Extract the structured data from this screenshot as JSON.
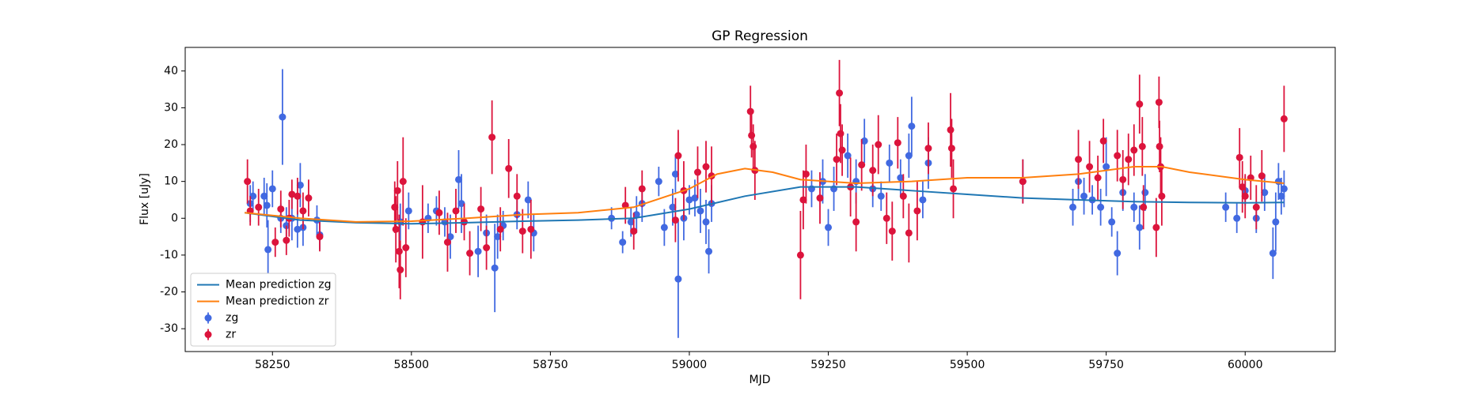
{
  "chart_data": {
    "type": "errorbar",
    "title": "GP Regression",
    "xlabel": "MJD",
    "ylabel": "Flux [uJy]",
    "xlim": [
      58093,
      60162
    ],
    "ylim": [
      -36.2,
      46.4
    ],
    "xticks": [
      58250,
      58500,
      58750,
      59000,
      59250,
      59500,
      59750,
      60000
    ],
    "yticks": [
      -30,
      -20,
      -10,
      0,
      10,
      20,
      30,
      40
    ],
    "legend": "lower left",
    "series": [
      {
        "name": "Mean prediction zg",
        "kind": "line",
        "color": "#1f77b4",
        "x": [
          58200,
          58300,
          58400,
          58500,
          58600,
          58700,
          58800,
          58900,
          59000,
          59100,
          59200,
          59300,
          59400,
          59500,
          59600,
          59700,
          59800,
          59900,
          60000,
          60070
        ],
        "values": [
          1.5,
          -0.5,
          -1.2,
          -1.5,
          -1.2,
          -0.8,
          -0.5,
          0,
          2.5,
          6,
          8.5,
          8.5,
          7.5,
          6.5,
          5.5,
          5,
          4.5,
          4.3,
          4.2,
          4.3
        ]
      },
      {
        "name": "Mean prediction zr",
        "kind": "line",
        "color": "#ff7f0e",
        "x": [
          58200,
          58300,
          58400,
          58500,
          58600,
          58700,
          58800,
          58900,
          59000,
          59050,
          59100,
          59150,
          59200,
          59300,
          59400,
          59500,
          59600,
          59700,
          59800,
          59850,
          59900,
          60000,
          60070
        ],
        "values": [
          1.5,
          0,
          -1,
          -0.8,
          0,
          1,
          1.5,
          3,
          8,
          12,
          13.5,
          12.5,
          10.5,
          9.5,
          10,
          11,
          11,
          12,
          14,
          14,
          12.5,
          10.5,
          9.5
        ]
      },
      {
        "name": "zg",
        "kind": "errorbar",
        "color": "#4169e1",
        "x": [
          58210,
          58215,
          58235,
          58240,
          58242,
          58250,
          58265,
          58268,
          58275,
          58285,
          58295,
          58300,
          58305,
          58330,
          58335,
          58480,
          58495,
          58530,
          58545,
          58560,
          58570,
          58585,
          58590,
          58620,
          58635,
          58650,
          58655,
          58665,
          58690,
          58710,
          58720,
          58860,
          58880,
          58895,
          58905,
          58915,
          58945,
          58955,
          58970,
          58975,
          58980,
          58990,
          59000,
          59010,
          59020,
          59030,
          59035,
          59040,
          59220,
          59240,
          59250,
          59260,
          59285,
          59300,
          59315,
          59330,
          59345,
          59360,
          59380,
          59395,
          59400,
          59420,
          59430,
          59600,
          59690,
          59700,
          59710,
          59725,
          59740,
          59750,
          59760,
          59770,
          59780,
          59800,
          59810,
          59820,
          59965,
          59985,
          60000,
          60020,
          60035,
          60050,
          60055,
          60060,
          60065,
          60070
        ],
        "values": [
          4,
          6,
          6,
          3.5,
          -8.5,
          8,
          0,
          27.5,
          -2,
          0,
          -3,
          9,
          -2.5,
          -0.5,
          -4.5,
          -1,
          2,
          0,
          2,
          -1,
          -5,
          10.5,
          4,
          -9,
          -4,
          -13.5,
          -5,
          -2,
          1,
          5,
          -4,
          0,
          -6.5,
          -1,
          1,
          4,
          10,
          -2.5,
          3,
          12,
          -16.5,
          0,
          5,
          5.5,
          2,
          -1,
          -9,
          4,
          8,
          10,
          -2.5,
          8,
          17,
          10,
          21,
          8,
          6,
          15,
          11,
          17,
          25,
          5,
          15,
          10,
          3,
          10,
          6,
          5,
          3,
          14,
          -1,
          -9.5,
          7,
          3,
          -2.5,
          7,
          3,
          0,
          7.5,
          0,
          7,
          -9.5,
          -1,
          10,
          6,
          8
        ],
        "errors": [
          5,
          4,
          5,
          6,
          8,
          5,
          4,
          13,
          5,
          6,
          5,
          6,
          5,
          4,
          4,
          5,
          5,
          4,
          4,
          4,
          6,
          8,
          8,
          7,
          5,
          12,
          6,
          4,
          4,
          5,
          5,
          3,
          3,
          4,
          5,
          5,
          4,
          5,
          5,
          5,
          16,
          6,
          4,
          5,
          6,
          6,
          6,
          5,
          5,
          6,
          5,
          6,
          6,
          6,
          6,
          5,
          4,
          5,
          5,
          6,
          8,
          5,
          7,
          6,
          5,
          5,
          5,
          4,
          5,
          8,
          4,
          6,
          5,
          4,
          6,
          5,
          4,
          4,
          4,
          4,
          5,
          7,
          8,
          5,
          5,
          5
        ]
      },
      {
        "name": "zr",
        "kind": "errorbar",
        "color": "#dc143c",
        "x": [
          58205,
          58210,
          58225,
          58255,
          58265,
          58275,
          58280,
          58285,
          58295,
          58305,
          58315,
          58335,
          58470,
          58472,
          58475,
          58478,
          58480,
          58485,
          58490,
          58520,
          58550,
          58565,
          58580,
          58595,
          58605,
          58625,
          58635,
          58645,
          58660,
          58675,
          58690,
          58700,
          58715,
          58885,
          58900,
          58915,
          58980,
          58990,
          58975,
          59015,
          59030,
          59040,
          59110,
          59112,
          59115,
          59118,
          59200,
          59205,
          59210,
          59235,
          59265,
          59270,
          59272,
          59275,
          59290,
          59300,
          59310,
          59330,
          59340,
          59355,
          59365,
          59375,
          59385,
          59395,
          59410,
          59430,
          59470,
          59472,
          59475,
          59600,
          59700,
          59720,
          59735,
          59745,
          59770,
          59780,
          59790,
          59800,
          59810,
          59815,
          59817,
          59840,
          59845,
          59846,
          59848,
          59850,
          59990,
          59995,
          60000,
          60010,
          60020,
          60030,
          60070
        ],
        "values": [
          10,
          2,
          3,
          -6.5,
          2.5,
          -6,
          0,
          6.5,
          6,
          2,
          5.5,
          -5,
          3,
          -3,
          7.5,
          -9,
          -14,
          10,
          -8,
          -1,
          1.5,
          -6.5,
          2,
          -1,
          -9.5,
          2.5,
          -8,
          22,
          -3,
          13.5,
          6,
          -3.5,
          -3,
          3.5,
          -3.5,
          8,
          17,
          7.5,
          -0.5,
          12.5,
          14,
          11.5,
          29,
          22.5,
          19.5,
          13,
          -10,
          5,
          12,
          5.5,
          16,
          34,
          23,
          18.5,
          8.5,
          -1,
          14.5,
          13,
          20,
          0,
          -3.5,
          20.5,
          6,
          -4,
          2,
          19,
          24,
          19,
          8,
          10,
          16,
          14,
          11,
          21,
          17,
          10.5,
          16,
          18.5,
          31,
          19.5,
          3,
          -2.5,
          31.5,
          19.5,
          14,
          6,
          16.5,
          8.5,
          6,
          11,
          3,
          11.5,
          27
        ],
        "errors": [
          6,
          4,
          5,
          4,
          5,
          4,
          5,
          4,
          5,
          5,
          5,
          4,
          7,
          9,
          8,
          10,
          8,
          12,
          8,
          10,
          6,
          8,
          6,
          5,
          6,
          6,
          6,
          10,
          6,
          8,
          6,
          6,
          8,
          5,
          5,
          5,
          7,
          8,
          6,
          7,
          7,
          8,
          7,
          6,
          6,
          8,
          12,
          8,
          8,
          7,
          7,
          9,
          8,
          7,
          8,
          8,
          7,
          7,
          8,
          7,
          8,
          7,
          6,
          8,
          8,
          7,
          10,
          8,
          8,
          6,
          8,
          7,
          6,
          6,
          7,
          8,
          7,
          7,
          8,
          8,
          6,
          8,
          7,
          7,
          8,
          8,
          8,
          7,
          6,
          6,
          6,
          7,
          9
        ]
      }
    ]
  }
}
